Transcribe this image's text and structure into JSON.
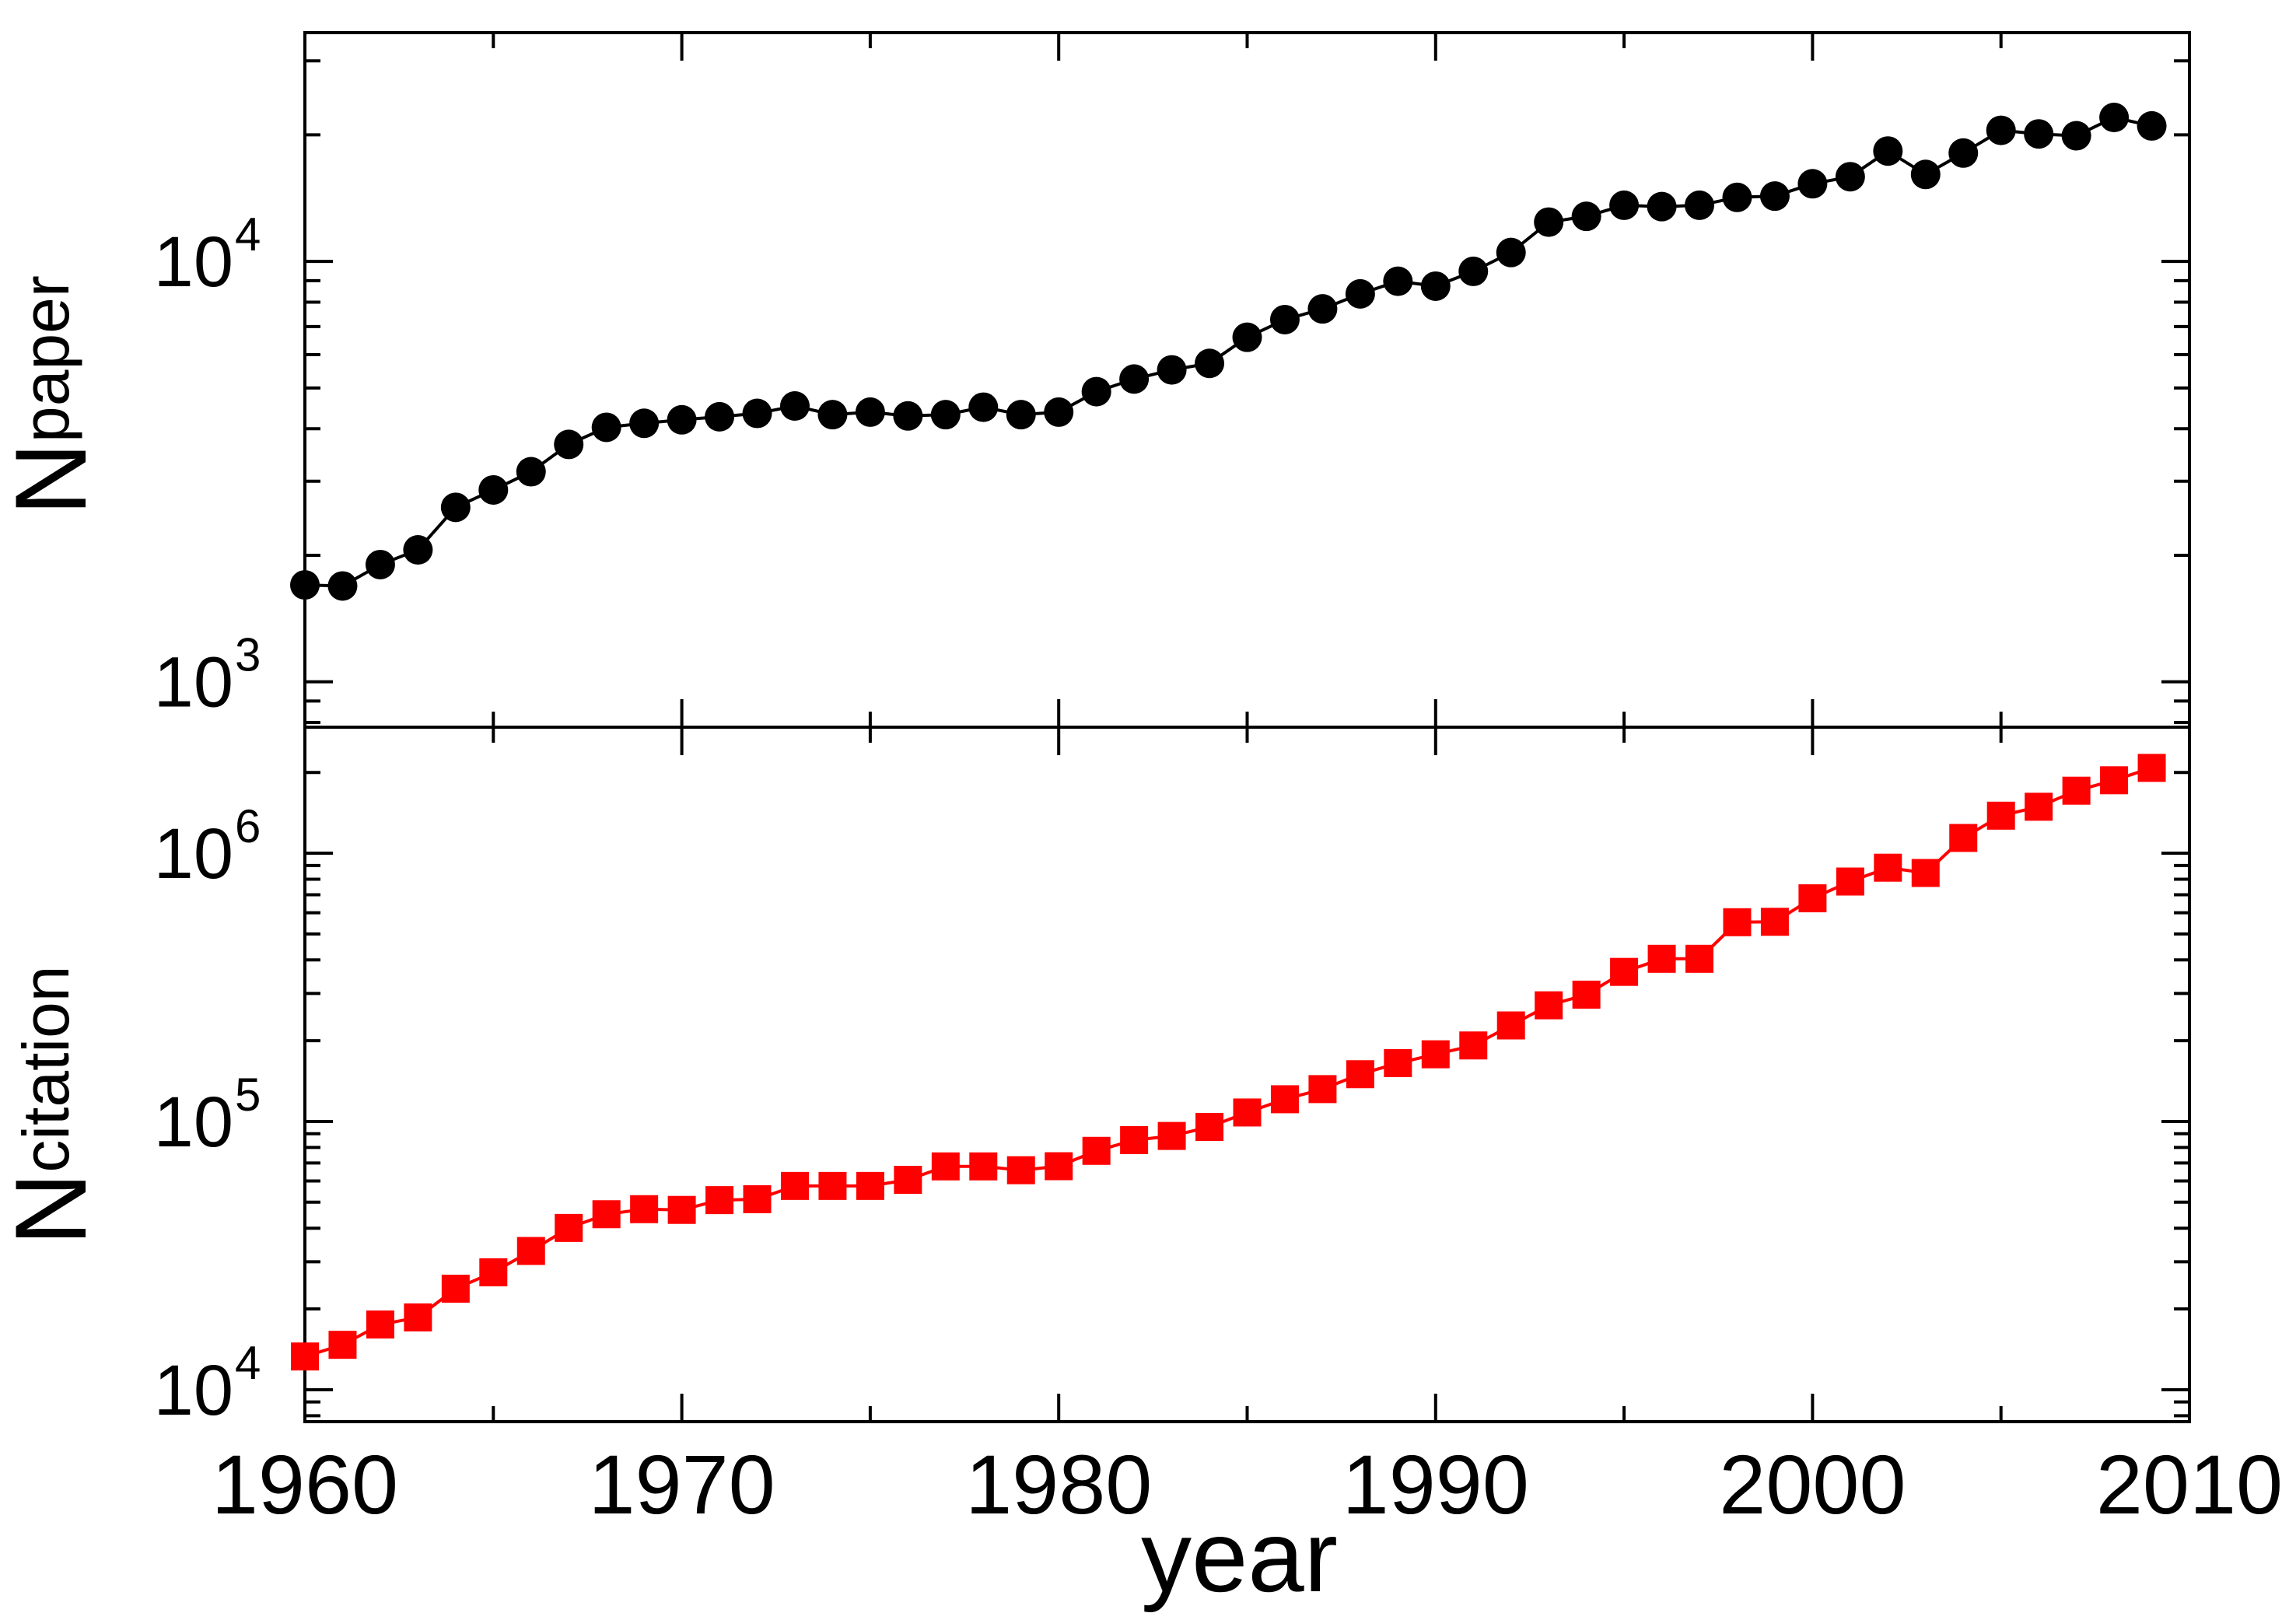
{
  "chart_data": {
    "type": "scatter",
    "shared_x": {
      "label": "year",
      "range": [
        1960,
        2010
      ],
      "ticks": [
        1960,
        1970,
        1980,
        1990,
        2000,
        2010
      ],
      "tick_labels": [
        "1960",
        "1970",
        "1980",
        "1990",
        "2000",
        "2010"
      ]
    },
    "panels": [
      {
        "id": "paper",
        "ylabel_main": "N",
        "ylabel_sub": "paper",
        "yscale": "log",
        "ylim": [
          780,
          35000
        ],
        "yticks_major": [
          1000,
          10000
        ],
        "ytick_labels": [
          {
            "base": "10",
            "exp": "3"
          },
          {
            "base": "10",
            "exp": "4"
          }
        ],
        "marker": "circle",
        "color": "#000000",
        "series": [
          {
            "x": [
              1960,
              1961,
              1962,
              1963,
              1964,
              1965,
              1966,
              1967,
              1968,
              1969,
              1970,
              1971,
              1972,
              1973,
              1974,
              1975,
              1976,
              1977,
              1978,
              1979,
              1980,
              1981,
              1982,
              1983,
              1984,
              1985,
              1986,
              1987,
              1988,
              1989,
              1990,
              1991,
              1992,
              1993,
              1994,
              1995,
              1996,
              1997,
              1998,
              1999,
              2000,
              2001,
              2002,
              2003,
              2004,
              2005,
              2006,
              2007,
              2008,
              2009
            ],
            "values": [
              1700,
              1690,
              1900,
              2060,
              2600,
              2860,
              3160,
              3670,
              4030,
              4120,
              4200,
              4270,
              4350,
              4530,
              4320,
              4380,
              4290,
              4320,
              4500,
              4320,
              4380,
              4900,
              5250,
              5520,
              5720,
              6600,
              7270,
              7710,
              8370,
              8970,
              8730,
              9470,
              10500,
              12400,
              12800,
              13600,
              13500,
              13600,
              14200,
              14300,
              15300,
              15900,
              18300,
              16100,
              18100,
              20500,
              20100,
              19900,
              22000,
              21000
            ]
          }
        ]
      },
      {
        "id": "citation",
        "ylabel_main": "N",
        "ylabel_sub": "citation",
        "yscale": "log",
        "ylim": [
          7600,
          2950000
        ],
        "yticks_major": [
          10000,
          100000,
          1000000
        ],
        "ytick_labels": [
          {
            "base": "10",
            "exp": "4"
          },
          {
            "base": "10",
            "exp": "5"
          },
          {
            "base": "10",
            "exp": "6"
          }
        ],
        "marker": "square",
        "color": "#ff0000",
        "series": [
          {
            "x": [
              1960,
              1961,
              1962,
              1963,
              1964,
              1965,
              1966,
              1967,
              1968,
              1969,
              1970,
              1971,
              1972,
              1973,
              1974,
              1975,
              1976,
              1977,
              1978,
              1979,
              1980,
              1981,
              1982,
              1983,
              1984,
              1985,
              1986,
              1987,
              1988,
              1989,
              1990,
              1991,
              1992,
              1993,
              1994,
              1995,
              1996,
              1997,
              1998,
              1999,
              2000,
              2001,
              2002,
              2003,
              2004,
              2005,
              2006,
              2007,
              2008,
              2009
            ],
            "values": [
              13300,
              14700,
              17500,
              18600,
              23800,
              27400,
              32900,
              40100,
              45100,
              47100,
              46800,
              50900,
              51300,
              57500,
              57500,
              57500,
              60600,
              68000,
              68000,
              65800,
              68100,
              77700,
              85200,
              88300,
              95400,
              108000,
              121000,
              132000,
              150000,
              165000,
              178000,
              192000,
              228000,
              271000,
              297000,
              361000,
              404000,
              404000,
              553000,
              555000,
              679000,
              784000,
              883000,
              844000,
              1140000,
              1380000,
              1490000,
              1710000,
              1870000,
              2080000
            ]
          }
        ]
      }
    ]
  }
}
